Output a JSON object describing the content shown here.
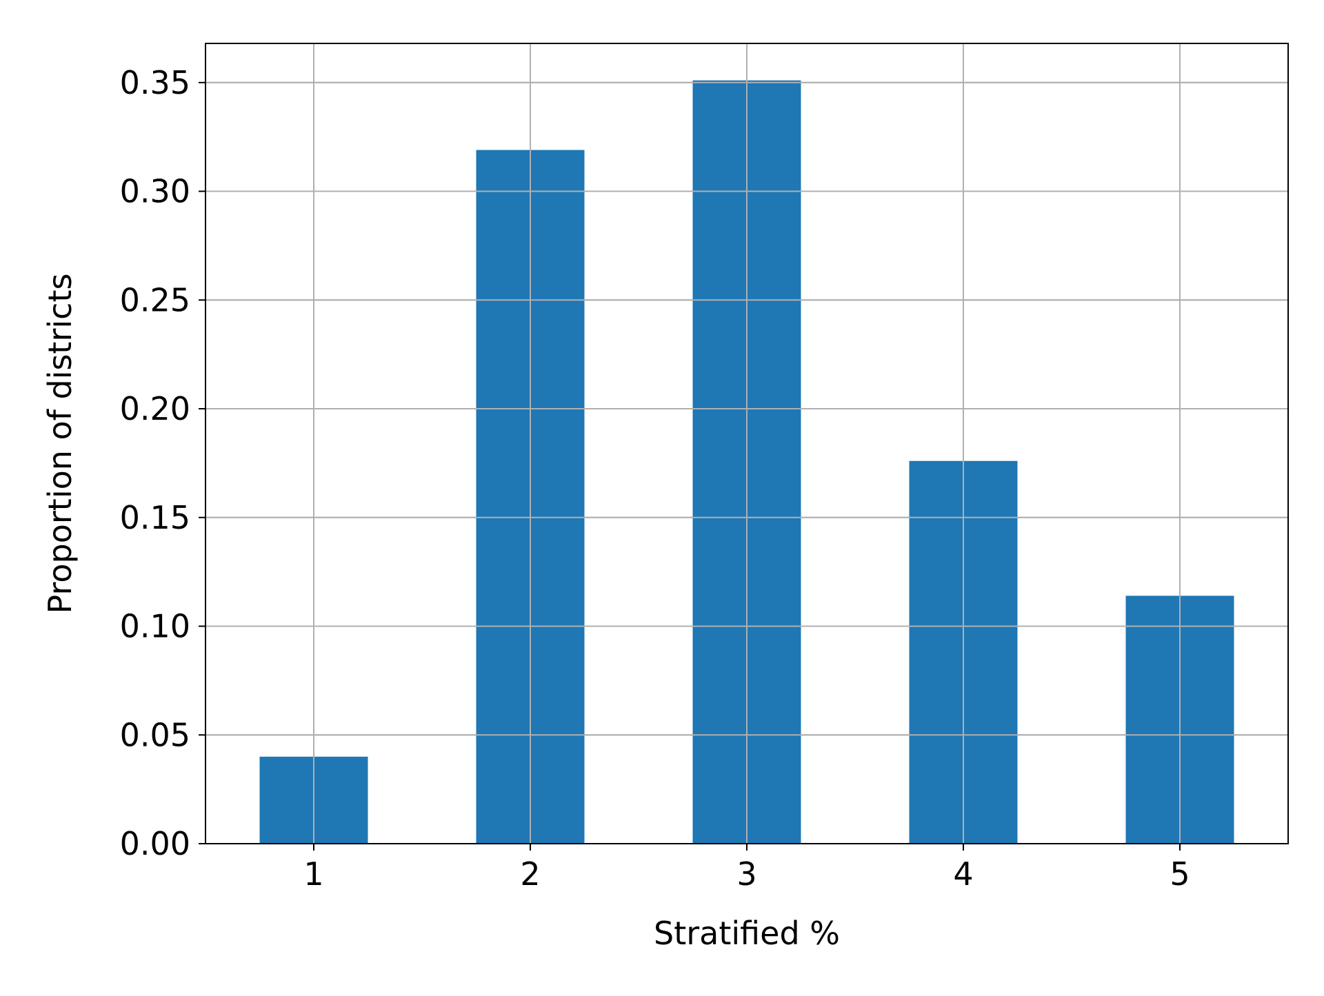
{
  "chart_data": {
    "type": "bar",
    "title": "",
    "xlabel": "Stratified %",
    "ylabel": "Proportion of districts",
    "categories": [
      "1",
      "2",
      "3",
      "4",
      "5"
    ],
    "values": [
      0.04,
      0.319,
      0.351,
      0.176,
      0.114
    ],
    "ylim": [
      0,
      0.368
    ],
    "yticks": [
      "0.00",
      "0.05",
      "0.10",
      "0.15",
      "0.20",
      "0.25",
      "0.30",
      "0.35"
    ],
    "ytick_values": [
      0,
      0.05,
      0.1,
      0.15,
      0.2,
      0.25,
      0.3,
      0.35
    ],
    "grid": true,
    "bar_color": "#1f77b4",
    "grid_color": "#b0b0b0"
  }
}
